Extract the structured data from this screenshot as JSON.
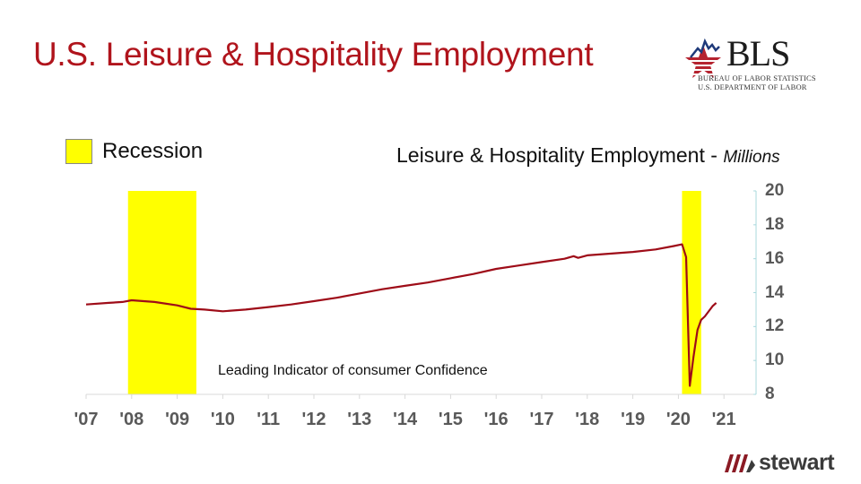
{
  "header": {
    "title": "U.S. Leisure & Hospitality Employment"
  },
  "bls_logo": {
    "name": "BLS",
    "line1": "BUREAU OF LABOR STATISTICS",
    "line2": "U.S. DEPARTMENT OF LABOR"
  },
  "legend": {
    "label": "Recession",
    "color": "#ffff00"
  },
  "series_title": {
    "main": "Leisure & Hospitality Employment - ",
    "unit": "Millions"
  },
  "annotation": "Leading Indicator of consumer Confidence",
  "footer_logo": {
    "name": "stewart"
  },
  "colors": {
    "title": "#b0141c",
    "line": "#9e0c18",
    "recession": "#ffff00",
    "axis": "#a8d8dc",
    "tick_label": "#595959"
  },
  "chart_data": {
    "type": "line",
    "title": "Leisure & Hospitality Employment - Millions",
    "xlabel": "",
    "ylabel": "Millions",
    "y_axis_position": "right",
    "ylim": [
      8,
      20
    ],
    "yticks": [
      8,
      10,
      12,
      14,
      16,
      18,
      20
    ],
    "xticks": [
      "'07",
      "'08",
      "'09",
      "'10",
      "'11",
      "'12",
      "'13",
      "'14",
      "'15",
      "'16",
      "'17",
      "'18",
      "'19",
      "'20",
      "'21"
    ],
    "xlim": [
      2007.0,
      2021.5
    ],
    "grid": false,
    "legend": [
      {
        "label": "Recession",
        "type": "shaded-band",
        "color": "#ffff00"
      }
    ],
    "recession_bands": [
      {
        "start": 2007.92,
        "end": 2009.42
      },
      {
        "start": 2020.08,
        "end": 2020.5
      }
    ],
    "annotations": [
      "Leading Indicator of consumer Confidence"
    ],
    "series": [
      {
        "name": "Leisure & Hospitality Employment",
        "x": [
          2007.0,
          2007.5,
          2007.8,
          2008.0,
          2008.5,
          2009.0,
          2009.3,
          2009.6,
          2010.0,
          2010.5,
          2011.0,
          2011.5,
          2012.0,
          2012.5,
          2013.0,
          2013.5,
          2014.0,
          2014.5,
          2015.0,
          2015.5,
          2016.0,
          2016.5,
          2017.0,
          2017.5,
          2017.7,
          2017.8,
          2018.0,
          2018.5,
          2019.0,
          2019.5,
          2019.9,
          2020.08,
          2020.17,
          2020.25,
          2020.33,
          2020.42,
          2020.5,
          2020.58,
          2020.75,
          2020.83
        ],
        "values": [
          13.3,
          13.4,
          13.45,
          13.55,
          13.45,
          13.25,
          13.05,
          13.0,
          12.9,
          13.0,
          13.15,
          13.3,
          13.5,
          13.7,
          13.95,
          14.2,
          14.4,
          14.6,
          14.85,
          15.1,
          15.4,
          15.6,
          15.8,
          16.0,
          16.15,
          16.05,
          16.2,
          16.3,
          16.4,
          16.55,
          16.75,
          16.85,
          16.1,
          8.5,
          10.2,
          11.8,
          12.4,
          12.6,
          13.2,
          13.4
        ]
      }
    ]
  }
}
